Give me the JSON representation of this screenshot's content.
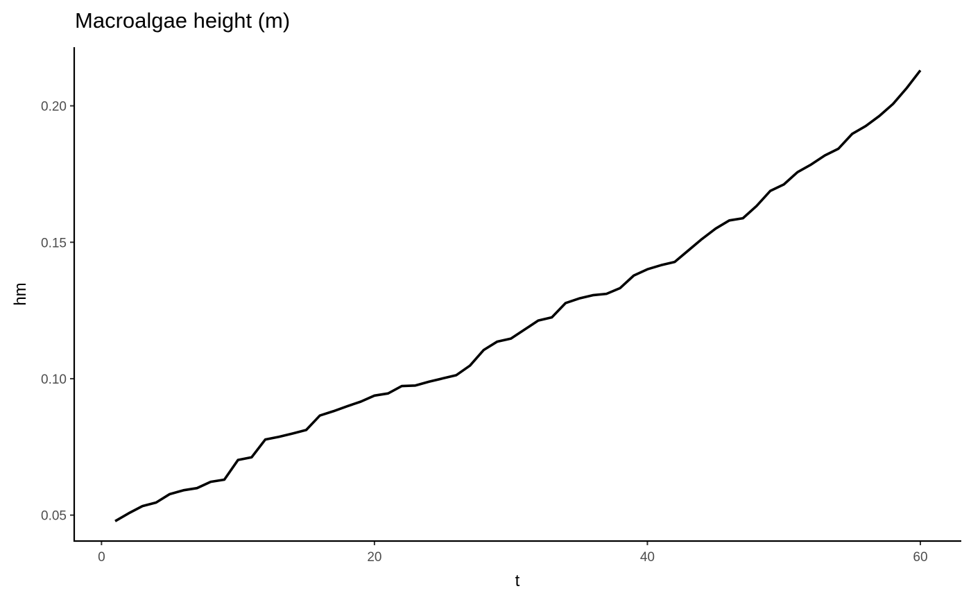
{
  "chart_data": {
    "type": "line",
    "title": "Macroalgae height (m)",
    "xlabel": "t",
    "ylabel": "hm",
    "xlim": [
      -2,
      63
    ],
    "ylim": [
      0.0405,
      0.2215
    ],
    "x_ticks": [
      0,
      20,
      40,
      60
    ],
    "x_tick_labels": [
      "0",
      "20",
      "40",
      "60"
    ],
    "y_ticks": [
      0.05,
      0.1,
      0.15,
      0.2
    ],
    "y_tick_labels": [
      "0.05",
      "0.10",
      "0.15",
      "0.20"
    ],
    "grid": false,
    "legend": "none",
    "line_color": "#000000",
    "series": [
      {
        "x": [
          1,
          2,
          3,
          4,
          5,
          6,
          7,
          8,
          9,
          10,
          11,
          12,
          13,
          14,
          15,
          16,
          17,
          18,
          19,
          20,
          21,
          22,
          23,
          24,
          25,
          26,
          27,
          28,
          29,
          30,
          31,
          32,
          33,
          34,
          35,
          36,
          37,
          38,
          39,
          40,
          41,
          42,
          43,
          44,
          45,
          46,
          47,
          48,
          49,
          50,
          51,
          52,
          53,
          54,
          55,
          56,
          57,
          58,
          59,
          60
        ],
        "values": [
          0.0478,
          0.0507,
          0.0533,
          0.0546,
          0.0577,
          0.0591,
          0.0599,
          0.0622,
          0.063,
          0.0702,
          0.0712,
          0.0777,
          0.0787,
          0.0799,
          0.0812,
          0.0865,
          0.0881,
          0.0899,
          0.0916,
          0.0938,
          0.0946,
          0.0973,
          0.0975,
          0.0989,
          0.1001,
          0.1013,
          0.1048,
          0.1105,
          0.1136,
          0.1147,
          0.118,
          0.1213,
          0.1225,
          0.1277,
          0.1294,
          0.1306,
          0.1311,
          0.1332,
          0.1378,
          0.1401,
          0.1416,
          0.1428,
          0.147,
          0.1512,
          0.155,
          0.158,
          0.1588,
          0.1633,
          0.1688,
          0.1712,
          0.1757,
          0.1785,
          0.1818,
          0.1843,
          0.1897,
          0.1926,
          0.1963,
          0.2007,
          0.2065,
          0.213
        ]
      }
    ]
  }
}
